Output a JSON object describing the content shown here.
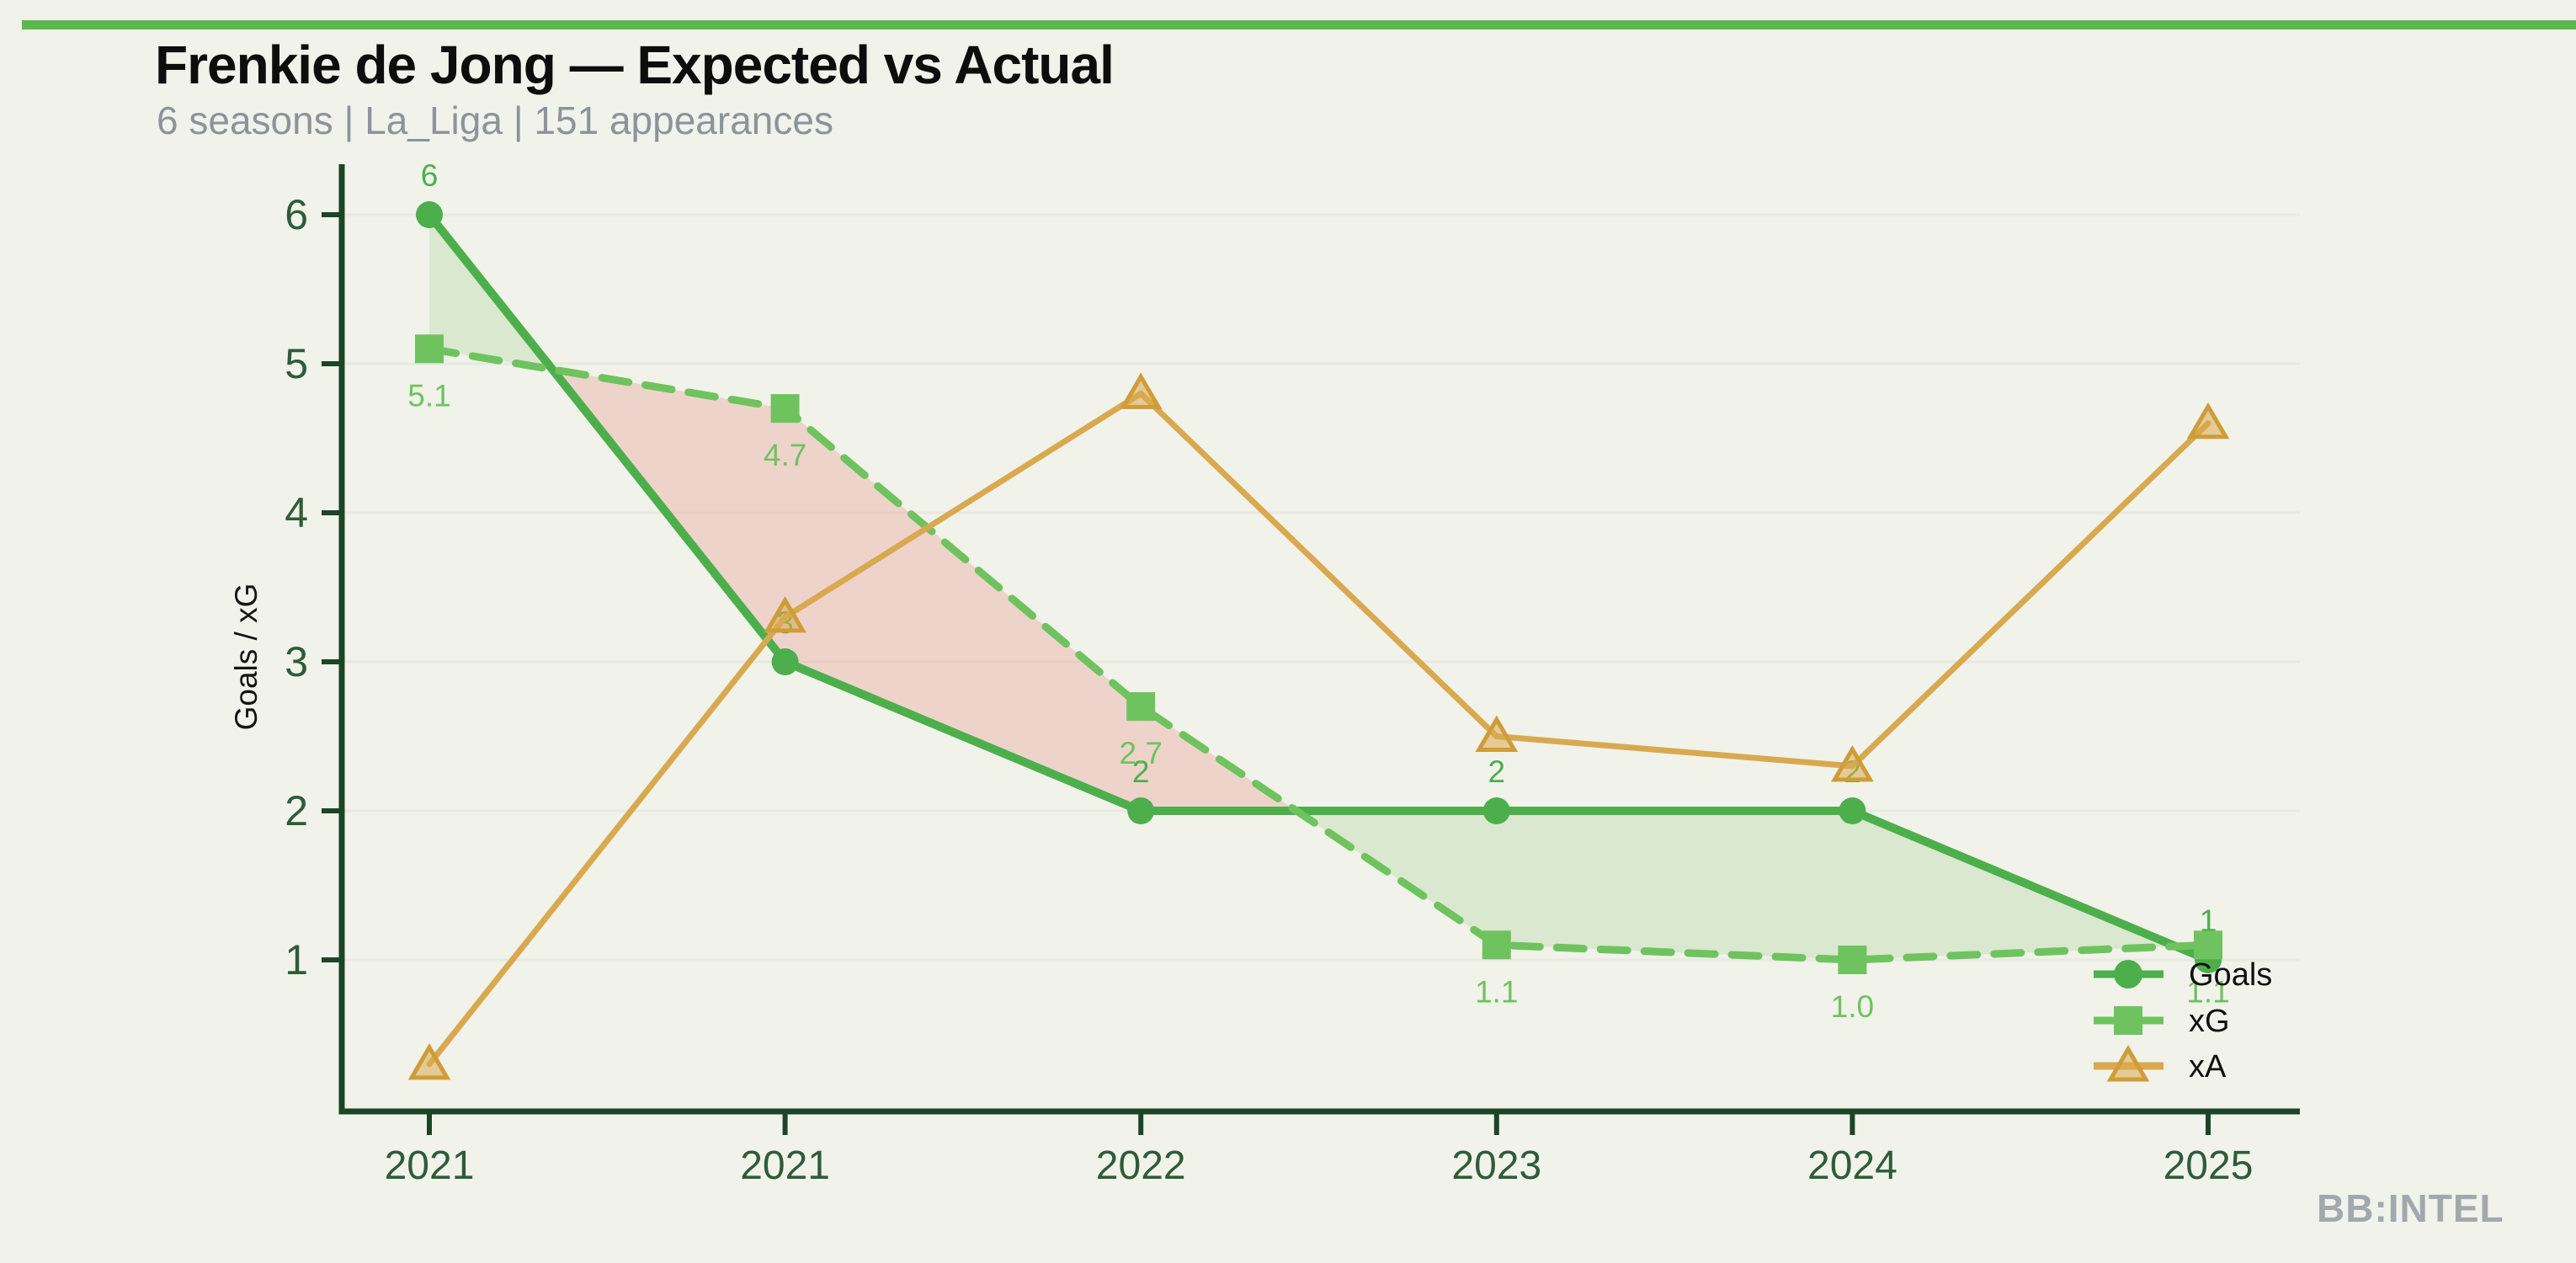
{
  "page": {
    "background": "#f1f2ea",
    "accent_bar_color": "#5bb84d",
    "brand": "BB:INTEL"
  },
  "header": {
    "title": "Frenkie de Jong — Expected vs Actual",
    "subtitle": "6 seasons | La_Liga | 151 appearances"
  },
  "chart_data": {
    "type": "line",
    "title": "Frenkie de Jong — Expected vs Actual",
    "subtitle": "6 seasons | La_Liga | 151 appearances",
    "x_categories": [
      "2021",
      "2021",
      "2022",
      "2023",
      "2024",
      "2025"
    ],
    "ylabel": "Goals / xG",
    "ylim": [
      0,
      6.4
    ],
    "yticks": [
      1,
      2,
      3,
      4,
      5,
      6
    ],
    "grid": "faint horizontal gridlines",
    "legend_position": "lower-right",
    "axis_color": "#1c4527",
    "tick_label_color": "#2d5c39",
    "axis_label_color": "#141414",
    "legend_text_color": "#111111",
    "series": [
      {
        "name": "Goals",
        "style": "solid",
        "marker": "circle",
        "color": "#4caf4c",
        "label_position": "above",
        "values": [
          6,
          3,
          2,
          2,
          2,
          1
        ],
        "point_labels": [
          "6",
          "3",
          "2",
          "2",
          "2",
          "1"
        ]
      },
      {
        "name": "xG",
        "style": "dashed",
        "marker": "square",
        "color": "#6fc35f",
        "label_position": "below",
        "values": [
          5.1,
          4.7,
          2.7,
          1.1,
          1.0,
          1.1
        ],
        "point_labels": [
          "5.1",
          "4.7",
          "2.7",
          "1.1",
          "1.0",
          "1.1"
        ]
      },
      {
        "name": "xA",
        "style": "solid",
        "marker": "triangle",
        "color": "#d9a94f",
        "marker_stroke": "#cf9c38",
        "values": [
          0.3,
          3.3,
          4.8,
          2.5,
          2.3,
          4.6
        ],
        "point_labels": []
      }
    ],
    "fill_between": {
      "series_a": "Goals",
      "series_b": "xG",
      "positive_color": "rgba(109,190,88,0.18)",
      "negative_color": "rgba(230,120,110,0.25)"
    }
  }
}
